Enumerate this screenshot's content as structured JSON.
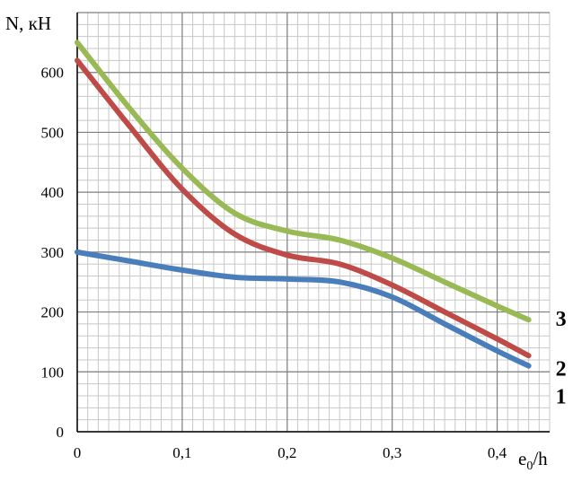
{
  "chart_data": {
    "type": "line",
    "ylabel": "N, кН",
    "xlabel": "e0/h",
    "xlabel_main": "e",
    "xlabel_sub": "0",
    "xlabel_tail": "/h",
    "xlim": [
      0,
      0.45
    ],
    "ylim": [
      0,
      700
    ],
    "x_ticks": [
      0,
      0.1,
      0.2,
      0.3,
      0.4
    ],
    "x_tick_labels": [
      "0",
      "0,1",
      "0,2",
      "0,3",
      "0,4"
    ],
    "y_ticks": [
      0,
      100,
      200,
      300,
      400,
      500,
      600
    ],
    "y_tick_labels": [
      "0",
      "100",
      "200",
      "300",
      "400",
      "500",
      "600"
    ],
    "grid": true,
    "series": [
      {
        "name": "1",
        "color": "#4a7ebb",
        "x": [
          0,
          0.05,
          0.1,
          0.15,
          0.2,
          0.25,
          0.3,
          0.35,
          0.4,
          0.43
        ],
        "y": [
          300,
          285,
          270,
          258,
          255,
          250,
          225,
          180,
          135,
          110
        ]
      },
      {
        "name": "2",
        "color": "#be4b48",
        "x": [
          0,
          0.05,
          0.1,
          0.15,
          0.2,
          0.25,
          0.3,
          0.35,
          0.4,
          0.43
        ],
        "y": [
          620,
          510,
          405,
          330,
          295,
          280,
          245,
          200,
          155,
          127
        ]
      },
      {
        "name": "3",
        "color": "#98b954",
        "x": [
          0,
          0.05,
          0.1,
          0.15,
          0.2,
          0.25,
          0.3,
          0.35,
          0.4,
          0.43
        ],
        "y": [
          650,
          540,
          440,
          365,
          335,
          320,
          290,
          250,
          210,
          187
        ]
      }
    ]
  }
}
